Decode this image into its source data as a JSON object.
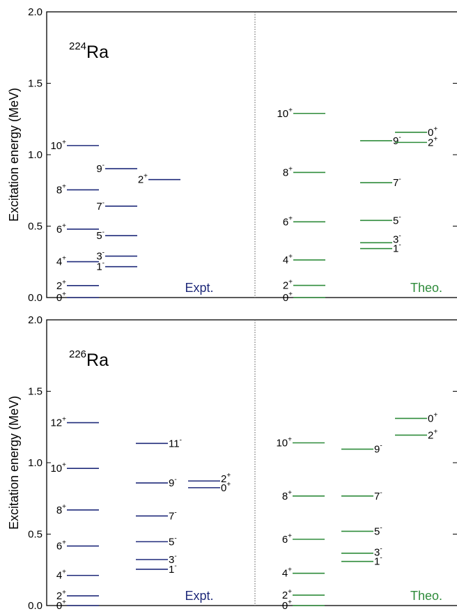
{
  "colors": {
    "expt": "#1f2a7a",
    "theo": "#2e8b3a",
    "axis": "#000000"
  },
  "chart_data": [
    {
      "type": "level-scheme",
      "nucleus": {
        "mass": "224",
        "symbol": "Ra"
      },
      "ylabel": "Excitation energy (MeV)",
      "ylim": [
        0.0,
        2.0
      ],
      "yticks": [
        {
          "value": 0.0,
          "label": "0.0"
        },
        {
          "value": 0.5,
          "label": "0.5"
        },
        {
          "value": 1.0,
          "label": "1.0"
        },
        {
          "value": 1.5,
          "label": "1.5"
        },
        {
          "value": 2.0,
          "label": "2.0"
        }
      ],
      "panels": [
        {
          "name": "Expt.",
          "color": "expt",
          "bands": [
            {
              "label_side": "left",
              "levels": [
                {
                  "spin": "0",
                  "parity": "+",
                  "energy": 0.0
                },
                {
                  "spin": "2",
                  "parity": "+",
                  "energy": 0.084
                },
                {
                  "spin": "4",
                  "parity": "+",
                  "energy": 0.251
                },
                {
                  "spin": "6",
                  "parity": "+",
                  "energy": 0.479
                },
                {
                  "spin": "8",
                  "parity": "+",
                  "energy": 0.754
                },
                {
                  "spin": "10",
                  "parity": "+",
                  "energy": 1.064
                }
              ]
            },
            {
              "label_side": "left",
              "levels": [
                {
                  "spin": "1",
                  "parity": "-",
                  "energy": 0.216
                },
                {
                  "spin": "3",
                  "parity": "-",
                  "energy": 0.29
                },
                {
                  "spin": "5",
                  "parity": "-",
                  "energy": 0.433
                },
                {
                  "spin": "7",
                  "parity": "-",
                  "energy": 0.64
                },
                {
                  "spin": "9",
                  "parity": "-",
                  "energy": 0.902
                }
              ]
            },
            {
              "label_side": "left",
              "levels": [
                {
                  "spin": "2",
                  "parity": "+",
                  "energy": 0.826
                }
              ]
            }
          ]
        },
        {
          "name": "Theo.",
          "color": "theo",
          "bands": [
            {
              "label_side": "left",
              "levels": [
                {
                  "spin": "0",
                  "parity": "+",
                  "energy": 0.0
                },
                {
                  "spin": "2",
                  "parity": "+",
                  "energy": 0.085
                },
                {
                  "spin": "4",
                  "parity": "+",
                  "energy": 0.263
                },
                {
                  "spin": "6",
                  "parity": "+",
                  "energy": 0.53
                },
                {
                  "spin": "8",
                  "parity": "+",
                  "energy": 0.876
                },
                {
                  "spin": "10",
                  "parity": "+",
                  "energy": 1.289
                }
              ]
            },
            {
              "label_side": "right",
              "levels": [
                {
                  "spin": "1",
                  "parity": "-",
                  "energy": 0.343
                },
                {
                  "spin": "3",
                  "parity": "-",
                  "energy": 0.384
                },
                {
                  "spin": "5",
                  "parity": "-",
                  "energy": 0.54
                },
                {
                  "spin": "7",
                  "parity": "-",
                  "energy": 0.804
                },
                {
                  "spin": "9",
                  "parity": "-",
                  "energy": 1.098
                }
              ]
            },
            {
              "label_side": "right",
              "levels": [
                {
                  "spin": "2",
                  "parity": "+",
                  "energy": 1.086
                },
                {
                  "spin": "0",
                  "parity": "+",
                  "energy": 1.157
                }
              ]
            }
          ]
        }
      ]
    },
    {
      "type": "level-scheme",
      "nucleus": {
        "mass": "226",
        "symbol": "Ra"
      },
      "ylabel": "Excitation energy (MeV)",
      "ylim": [
        0.0,
        2.0
      ],
      "yticks": [
        {
          "value": 0.0,
          "label": "0.0"
        },
        {
          "value": 0.5,
          "label": "0.5"
        },
        {
          "value": 1.0,
          "label": "1.0"
        },
        {
          "value": 1.5,
          "label": "1.5"
        },
        {
          "value": 2.0,
          "label": "2.0"
        }
      ],
      "panels": [
        {
          "name": "Expt.",
          "color": "expt",
          "bands": [
            {
              "label_side": "left",
              "levels": [
                {
                  "spin": "0",
                  "parity": "+",
                  "energy": 0.0
                },
                {
                  "spin": "2",
                  "parity": "+",
                  "energy": 0.068
                },
                {
                  "spin": "4",
                  "parity": "+",
                  "energy": 0.211
                },
                {
                  "spin": "6",
                  "parity": "+",
                  "energy": 0.417
                },
                {
                  "spin": "8",
                  "parity": "+",
                  "energy": 0.669
                },
                {
                  "spin": "10",
                  "parity": "+",
                  "energy": 0.96
                },
                {
                  "spin": "12",
                  "parity": "+",
                  "energy": 1.28
                }
              ]
            },
            {
              "label_side": "right",
              "levels": [
                {
                  "spin": "1",
                  "parity": "-",
                  "energy": 0.254
                },
                {
                  "spin": "3",
                  "parity": "-",
                  "energy": 0.322
                },
                {
                  "spin": "5",
                  "parity": "-",
                  "energy": 0.447
                },
                {
                  "spin": "7",
                  "parity": "-",
                  "energy": 0.627
                },
                {
                  "spin": "9",
                  "parity": "-",
                  "energy": 0.858
                },
                {
                  "spin": "11",
                  "parity": "-",
                  "energy": 1.135
                }
              ]
            },
            {
              "label_side": "right",
              "levels": [
                {
                  "spin": "0",
                  "parity": "+",
                  "energy": 0.825
                },
                {
                  "spin": "2",
                  "parity": "+",
                  "energy": 0.872
                }
              ]
            }
          ]
        },
        {
          "name": "Theo.",
          "color": "theo",
          "bands": [
            {
              "label_side": "left",
              "levels": [
                {
                  "spin": "0",
                  "parity": "+",
                  "energy": 0.0
                },
                {
                  "spin": "2",
                  "parity": "+",
                  "energy": 0.073
                },
                {
                  "spin": "4",
                  "parity": "+",
                  "energy": 0.226
                },
                {
                  "spin": "6",
                  "parity": "+",
                  "energy": 0.464
                },
                {
                  "spin": "8",
                  "parity": "+",
                  "energy": 0.767
                },
                {
                  "spin": "10",
                  "parity": "+",
                  "energy": 1.139
                }
              ]
            },
            {
              "label_side": "right",
              "levels": [
                {
                  "spin": "1",
                  "parity": "-",
                  "energy": 0.309
                },
                {
                  "spin": "3",
                  "parity": "-",
                  "energy": 0.366
                },
                {
                  "spin": "5",
                  "parity": "-",
                  "energy": 0.52
                },
                {
                  "spin": "7",
                  "parity": "-",
                  "energy": 0.767
                },
                {
                  "spin": "9",
                  "parity": "-",
                  "energy": 1.095
                }
              ]
            },
            {
              "label_side": "right",
              "levels": [
                {
                  "spin": "2",
                  "parity": "+",
                  "energy": 1.193
                },
                {
                  "spin": "0",
                  "parity": "+",
                  "energy": 1.31
                }
              ]
            }
          ]
        }
      ]
    }
  ]
}
